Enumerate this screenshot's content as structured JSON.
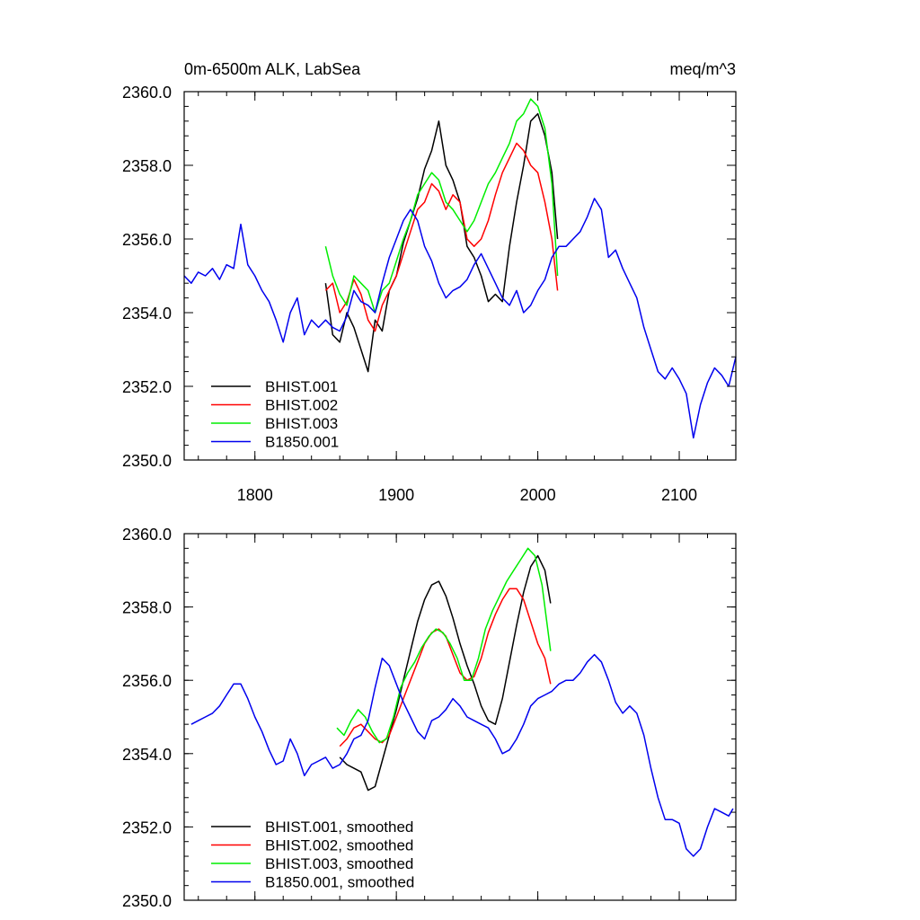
{
  "chart_data": [
    {
      "type": "line",
      "title_left": "0m-6500m ALK, LabSea",
      "title_right": "meq/m^3",
      "xlabel": "",
      "ylabel": "",
      "xlim": [
        1750,
        2140
      ],
      "ylim": [
        2350,
        2360
      ],
      "y_ticks": [
        2350,
        2352,
        2354,
        2356,
        2358,
        2360
      ],
      "y_tick_labels": [
        "2350.0",
        "2352.0",
        "2354.0",
        "2356.0",
        "2358.0",
        "2360.0"
      ],
      "x_ticks": [
        1800,
        1900,
        2000,
        2100
      ],
      "x_tick_labels": [
        "1800",
        "1900",
        "2000",
        "2100"
      ],
      "legend_position": "bottom-left",
      "series": [
        {
          "name": "BHIST.001",
          "color": "#000000",
          "x": [
            1850,
            1855,
            1860,
            1865,
            1870,
            1875,
            1880,
            1885,
            1890,
            1895,
            1900,
            1905,
            1910,
            1915,
            1920,
            1925,
            1930,
            1935,
            1940,
            1945,
            1950,
            1955,
            1960,
            1965,
            1970,
            1975,
            1980,
            1985,
            1990,
            1995,
            2000,
            2005,
            2010,
            2014
          ],
          "y": [
            2354.8,
            2353.4,
            2353.2,
            2354.0,
            2353.6,
            2353.0,
            2352.4,
            2353.8,
            2353.5,
            2354.6,
            2355.0,
            2355.9,
            2356.5,
            2357.1,
            2357.9,
            2358.4,
            2359.2,
            2358.0,
            2357.6,
            2357.0,
            2355.8,
            2355.5,
            2355.0,
            2354.3,
            2354.5,
            2354.3,
            2355.8,
            2357.0,
            2358.0,
            2359.2,
            2359.4,
            2358.8,
            2357.8,
            2356.0
          ]
        },
        {
          "name": "BHIST.002",
          "color": "#ff0000",
          "x": [
            1850,
            1855,
            1860,
            1865,
            1870,
            1875,
            1880,
            1885,
            1890,
            1895,
            1900,
            1905,
            1910,
            1915,
            1920,
            1925,
            1930,
            1935,
            1940,
            1945,
            1950,
            1955,
            1960,
            1965,
            1970,
            1975,
            1980,
            1985,
            1990,
            1995,
            2000,
            2005,
            2010,
            2014
          ],
          "y": [
            2354.6,
            2354.8,
            2354.0,
            2354.3,
            2354.9,
            2354.5,
            2353.8,
            2353.5,
            2354.2,
            2354.6,
            2355.0,
            2355.6,
            2356.2,
            2356.8,
            2357.0,
            2357.5,
            2357.3,
            2356.8,
            2357.2,
            2357.0,
            2356.0,
            2355.8,
            2356.0,
            2356.5,
            2357.2,
            2357.8,
            2358.2,
            2358.6,
            2358.4,
            2358.0,
            2357.8,
            2357.0,
            2356.0,
            2354.6
          ]
        },
        {
          "name": "BHIST.003",
          "color": "#00ee00",
          "x": [
            1850,
            1855,
            1860,
            1865,
            1870,
            1875,
            1880,
            1885,
            1890,
            1895,
            1900,
            1905,
            1910,
            1915,
            1920,
            1925,
            1930,
            1935,
            1940,
            1945,
            1950,
            1955,
            1960,
            1965,
            1970,
            1975,
            1980,
            1985,
            1990,
            1995,
            2000,
            2005,
            2010,
            2014
          ],
          "y": [
            2355.8,
            2355.0,
            2354.5,
            2354.2,
            2355.0,
            2354.8,
            2354.6,
            2354.0,
            2354.6,
            2354.8,
            2355.4,
            2356.0,
            2356.5,
            2357.2,
            2357.5,
            2357.8,
            2357.6,
            2357.0,
            2356.8,
            2356.5,
            2356.2,
            2356.5,
            2357.0,
            2357.5,
            2357.8,
            2358.2,
            2358.6,
            2359.2,
            2359.4,
            2359.8,
            2359.6,
            2359.0,
            2357.5,
            2355.0
          ]
        },
        {
          "name": "B1850.001",
          "color": "#0000ee",
          "x": [
            1750,
            1755,
            1760,
            1765,
            1770,
            1775,
            1780,
            1785,
            1790,
            1795,
            1800,
            1805,
            1810,
            1815,
            1820,
            1825,
            1830,
            1835,
            1840,
            1845,
            1850,
            1855,
            1860,
            1865,
            1870,
            1875,
            1880,
            1885,
            1890,
            1895,
            1900,
            1905,
            1910,
            1915,
            1920,
            1925,
            1930,
            1935,
            1940,
            1945,
            1950,
            1955,
            1960,
            1965,
            1970,
            1975,
            1980,
            1985,
            1990,
            1995,
            2000,
            2005,
            2010,
            2015,
            2020,
            2025,
            2030,
            2035,
            2040,
            2045,
            2050,
            2055,
            2060,
            2065,
            2070,
            2075,
            2080,
            2085,
            2090,
            2095,
            2100,
            2105,
            2110,
            2115,
            2120,
            2125,
            2130,
            2135,
            2140
          ],
          "y": [
            2355.0,
            2354.8,
            2355.1,
            2355.0,
            2355.2,
            2354.9,
            2355.3,
            2355.2,
            2356.4,
            2355.3,
            2355.0,
            2354.6,
            2354.3,
            2353.8,
            2353.2,
            2354.0,
            2354.4,
            2353.4,
            2353.8,
            2353.6,
            2353.8,
            2353.6,
            2353.5,
            2353.9,
            2354.6,
            2354.3,
            2354.2,
            2354.0,
            2354.8,
            2355.5,
            2356.0,
            2356.5,
            2356.8,
            2356.5,
            2355.8,
            2355.4,
            2354.8,
            2354.4,
            2354.6,
            2354.7,
            2354.9,
            2355.3,
            2355.6,
            2355.2,
            2354.8,
            2354.4,
            2354.2,
            2354.6,
            2354.0,
            2354.2,
            2354.6,
            2354.9,
            2355.5,
            2355.8,
            2355.8,
            2356.0,
            2356.2,
            2356.6,
            2357.1,
            2356.8,
            2355.5,
            2355.7,
            2355.2,
            2354.8,
            2354.4,
            2353.6,
            2353.0,
            2352.4,
            2352.2,
            2352.5,
            2352.2,
            2351.8,
            2350.6,
            2351.5,
            2352.1,
            2352.5,
            2352.3,
            2352.0,
            2352.8
          ]
        }
      ],
      "legend": [
        "BHIST.001",
        "BHIST.002",
        "BHIST.003",
        "B1850.001"
      ]
    },
    {
      "type": "line",
      "title_left": "",
      "title_right": "",
      "xlabel": "",
      "ylabel": "",
      "xlim": [
        1750,
        2140
      ],
      "ylim": [
        2350,
        2360
      ],
      "y_ticks": [
        2350,
        2352,
        2354,
        2356,
        2358,
        2360
      ],
      "y_tick_labels": [
        "2350.0",
        "2352.0",
        "2354.0",
        "2356.0",
        "2358.0",
        "2360.0"
      ],
      "x_ticks": [
        1800,
        1900,
        2000,
        2100
      ],
      "x_tick_labels": [],
      "legend_position": "bottom-left",
      "series": [
        {
          "name": "BHIST.001, smoothed",
          "color": "#000000",
          "x": [
            1860,
            1865,
            1870,
            1875,
            1880,
            1885,
            1890,
            1895,
            1900,
            1905,
            1910,
            1915,
            1920,
            1925,
            1930,
            1935,
            1940,
            1945,
            1950,
            1955,
            1960,
            1965,
            1970,
            1975,
            1980,
            1985,
            1990,
            1995,
            2000,
            2005,
            2009
          ],
          "y": [
            2353.9,
            2353.7,
            2353.6,
            2353.5,
            2353.0,
            2353.1,
            2353.8,
            2354.5,
            2355.2,
            2356.0,
            2356.8,
            2357.6,
            2358.2,
            2358.6,
            2358.7,
            2358.3,
            2357.7,
            2357.0,
            2356.4,
            2355.9,
            2355.3,
            2354.9,
            2354.8,
            2355.5,
            2356.5,
            2357.5,
            2358.4,
            2359.1,
            2359.4,
            2359.0,
            2358.1
          ]
        },
        {
          "name": "BHIST.002, smoothed",
          "color": "#ff0000",
          "x": [
            1860,
            1865,
            1870,
            1875,
            1880,
            1885,
            1890,
            1895,
            1900,
            1905,
            1910,
            1915,
            1920,
            1925,
            1930,
            1935,
            1940,
            1945,
            1950,
            1955,
            1960,
            1965,
            1970,
            1975,
            1980,
            1985,
            1990,
            1995,
            2000,
            2005,
            2009
          ],
          "y": [
            2354.2,
            2354.4,
            2354.7,
            2354.8,
            2354.6,
            2354.4,
            2354.3,
            2354.5,
            2355.0,
            2355.5,
            2356.0,
            2356.5,
            2357.0,
            2357.3,
            2357.4,
            2357.2,
            2356.7,
            2356.2,
            2356.0,
            2356.1,
            2356.6,
            2357.3,
            2357.8,
            2358.2,
            2358.5,
            2358.5,
            2358.2,
            2357.6,
            2357.0,
            2356.6,
            2355.9
          ]
        },
        {
          "name": "BHIST.003, smoothed",
          "color": "#00ee00",
          "x": [
            1858,
            1863,
            1868,
            1873,
            1878,
            1883,
            1888,
            1893,
            1898,
            1903,
            1908,
            1913,
            1918,
            1923,
            1928,
            1933,
            1938,
            1943,
            1948,
            1953,
            1958,
            1963,
            1968,
            1973,
            1978,
            1983,
            1988,
            1993,
            1998,
            2003,
            2009
          ],
          "y": [
            2354.7,
            2354.5,
            2354.9,
            2355.2,
            2355.0,
            2354.6,
            2354.3,
            2354.4,
            2355.0,
            2355.8,
            2356.2,
            2356.5,
            2356.9,
            2357.2,
            2357.4,
            2357.3,
            2357.0,
            2356.6,
            2356.0,
            2356.0,
            2356.6,
            2357.4,
            2357.9,
            2358.3,
            2358.7,
            2359.0,
            2359.3,
            2359.6,
            2359.4,
            2358.6,
            2356.8
          ]
        },
        {
          "name": "B1850.001, smoothed",
          "color": "#0000ee",
          "x": [
            1755,
            1760,
            1765,
            1770,
            1775,
            1780,
            1785,
            1790,
            1795,
            1800,
            1805,
            1810,
            1815,
            1820,
            1825,
            1830,
            1835,
            1840,
            1845,
            1850,
            1855,
            1860,
            1865,
            1870,
            1875,
            1880,
            1885,
            1890,
            1895,
            1900,
            1905,
            1910,
            1915,
            1920,
            1925,
            1930,
            1935,
            1940,
            1945,
            1950,
            1955,
            1960,
            1965,
            1970,
            1975,
            1980,
            1985,
            1990,
            1995,
            2000,
            2005,
            2010,
            2015,
            2020,
            2025,
            2030,
            2035,
            2040,
            2045,
            2050,
            2055,
            2060,
            2065,
            2070,
            2075,
            2080,
            2085,
            2090,
            2095,
            2100,
            2105,
            2110,
            2115,
            2120,
            2125,
            2130,
            2135,
            2138
          ],
          "y": [
            2354.8,
            2354.9,
            2355.0,
            2355.1,
            2355.3,
            2355.6,
            2355.9,
            2355.9,
            2355.5,
            2355.0,
            2354.6,
            2354.1,
            2353.7,
            2353.8,
            2354.4,
            2354.0,
            2353.4,
            2353.7,
            2353.8,
            2353.9,
            2353.6,
            2353.7,
            2354.0,
            2354.4,
            2354.5,
            2354.9,
            2355.8,
            2356.6,
            2356.4,
            2355.9,
            2355.4,
            2355.0,
            2354.6,
            2354.4,
            2354.9,
            2355.0,
            2355.2,
            2355.5,
            2355.3,
            2355.0,
            2354.9,
            2354.8,
            2354.7,
            2354.4,
            2354.0,
            2354.1,
            2354.4,
            2354.8,
            2355.3,
            2355.5,
            2355.6,
            2355.7,
            2355.9,
            2356.0,
            2356.0,
            2356.2,
            2356.5,
            2356.7,
            2356.5,
            2356.0,
            2355.4,
            2355.1,
            2355.3,
            2355.1,
            2354.5,
            2353.6,
            2352.8,
            2352.2,
            2352.2,
            2352.1,
            2351.4,
            2351.2,
            2351.4,
            2352.0,
            2352.5,
            2352.4,
            2352.3,
            2352.5
          ]
        }
      ],
      "legend": [
        "BHIST.001, smoothed",
        "BHIST.002, smoothed",
        "BHIST.003, smoothed",
        "B1850.001, smoothed"
      ]
    }
  ]
}
